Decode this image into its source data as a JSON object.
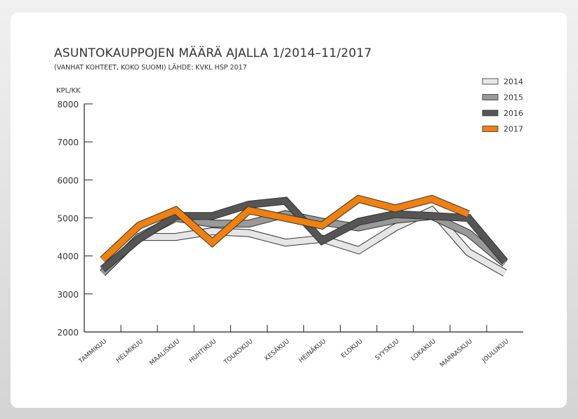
{
  "chart_data": {
    "type": "line",
    "title": "ASUNTOKAUPPOJEN MÄÄRÄ AJALLA 1/2014–11/2017",
    "subtitle": "(VANHAT KOHTEET, KOKO SUOMI) LÄHDE: KVKL HSP 2017",
    "ylabel": "KPL/KK",
    "xlabel": "",
    "ylim": [
      2000,
      8000
    ],
    "yticks": [
      2000,
      3000,
      4000,
      5000,
      6000,
      7000,
      8000
    ],
    "categories": [
      "TAMMIKUU",
      "HELMIKUU",
      "MAALISKUU",
      "HUHTIKUU",
      "TOUKOKUU",
      "KESÄKUU",
      "HEINÄKUU",
      "ELOKUU",
      "SYYSKUU",
      "LOKAKUU",
      "MARRASKUU",
      "JOULUKUU"
    ],
    "legend_position": "top-right",
    "series": [
      {
        "name": "2014",
        "color": "#e6e6e6",
        "values": [
          3550,
          4500,
          4500,
          4650,
          4600,
          4350,
          4450,
          4150,
          4750,
          5200,
          4100,
          3550
        ]
      },
      {
        "name": "2015",
        "color": "#999999",
        "values": [
          3550,
          4500,
          5000,
          4850,
          4850,
          5100,
          4900,
          4750,
          4950,
          5050,
          4600,
          3800
        ]
      },
      {
        "name": "2016",
        "color": "#555555",
        "values": [
          3650,
          4450,
          5050,
          5050,
          5350,
          5450,
          4400,
          4900,
          5100,
          5050,
          5000,
          3850
        ]
      },
      {
        "name": "2017",
        "color": "#f08010",
        "values": [
          3900,
          4800,
          5200,
          4350,
          5200,
          5000,
          4800,
          5500,
          5250,
          5500,
          5100,
          null
        ]
      }
    ]
  }
}
